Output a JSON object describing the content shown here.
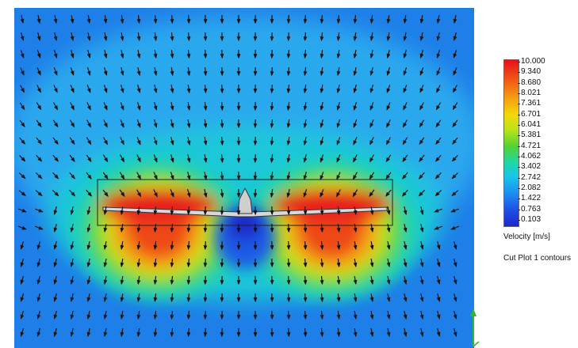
{
  "legend": {
    "ticks": [
      "10.000",
      "9.340",
      "8.680",
      "8.021",
      "7.361",
      "6.701",
      "6.041",
      "5.381",
      "4.721",
      "4.062",
      "3.402",
      "2.742",
      "2.082",
      "1.422",
      "0.763",
      "0.103"
    ],
    "title": "Velocity [m/s]",
    "caption": "Cut Plot 1  contours"
  },
  "colors": {
    "max": "#e8101a",
    "mid": "#52d335",
    "min": "#1c28cc",
    "background_field": "#1a8ff0",
    "axis_triad": "#2db82d"
  }
}
